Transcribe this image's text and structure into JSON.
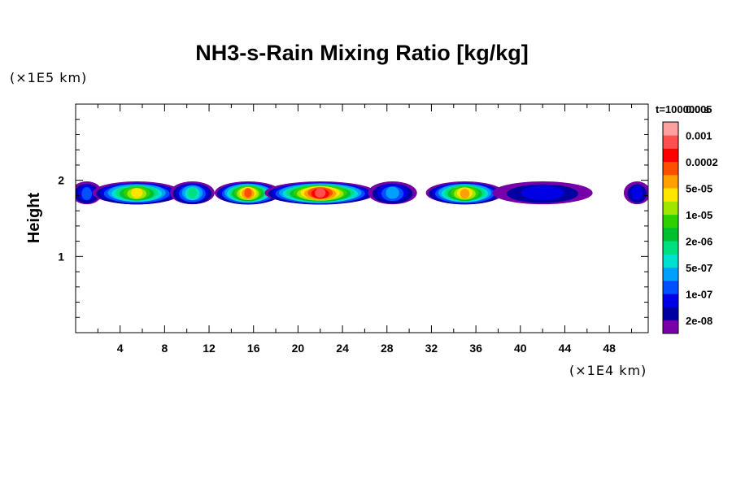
{
  "chart_data": {
    "type": "heatmap",
    "title": "NH3-s-Rain Mixing Ratio [kg/kg]",
    "ylabel": "Height",
    "xlabel": "",
    "x_units": "(×1E4 km)",
    "y_units": "(×1E5 km)",
    "time_label": "t=100000 s",
    "xlim": [
      0,
      51.5
    ],
    "ylim": [
      0,
      3
    ],
    "x_ticks": [
      4,
      8,
      12,
      16,
      20,
      24,
      28,
      32,
      36,
      40,
      44,
      48
    ],
    "x_tick_labels": [
      "4",
      "8",
      "12",
      "16",
      "20",
      "24",
      "28",
      "32",
      "36",
      "40",
      "44",
      "48"
    ],
    "y_ticks": [
      1,
      2
    ],
    "y_tick_labels": [
      "1",
      "2"
    ],
    "colorbar": {
      "levels": [
        "2e-08",
        "1e-07",
        "5e-07",
        "2e-06",
        "1e-05",
        "5e-05",
        "0.0002",
        "0.001",
        "0.005"
      ],
      "colors_bottom_to_top": [
        "#7800a8",
        "#0000a0",
        "#0000e6",
        "#0050ff",
        "#00a0ff",
        "#00e0d0",
        "#00e080",
        "#00c030",
        "#30d000",
        "#a0e600",
        "#ffe600",
        "#ffa000",
        "#ff5000",
        "#ff0000",
        "#ff5050",
        "#ffa0a0"
      ]
    },
    "cloud_layer": {
      "base_height": 1.68,
      "top_height": 1.98,
      "x_extent": [
        0,
        51.5
      ],
      "cells": [
        {
          "x_center": 1,
          "half_width": 1.4,
          "level_index": 3
        },
        {
          "x_center": 5.5,
          "half_width": 4,
          "level_index": 10
        },
        {
          "x_center": 10.5,
          "half_width": 2,
          "level_index": 6
        },
        {
          "x_center": 15.5,
          "half_width": 3,
          "level_index": 12
        },
        {
          "x_center": 22,
          "half_width": 5,
          "level_index": 14
        },
        {
          "x_center": 28.5,
          "half_width": 2.2,
          "level_index": 4
        },
        {
          "x_center": 35,
          "half_width": 3.5,
          "level_index": 11
        },
        {
          "x_center": 42,
          "half_width": 4.5,
          "level_index": 2
        },
        {
          "x_center": 50.5,
          "half_width": 1.2,
          "level_index": 2
        }
      ]
    }
  }
}
